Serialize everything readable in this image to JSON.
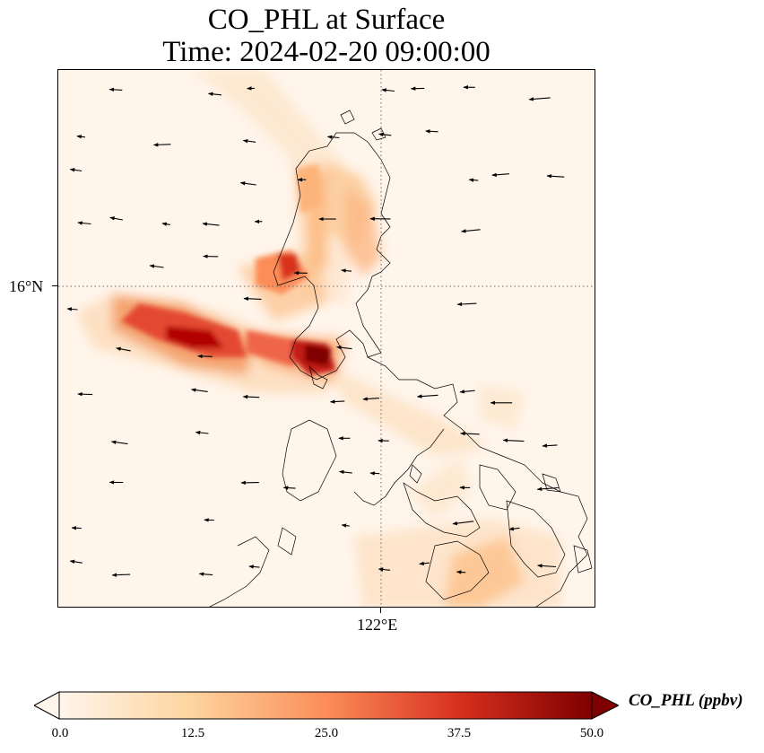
{
  "title": {
    "line1": "CO_PHL at Surface",
    "line2": "Time: 2024-02-20 09:00:00"
  },
  "axes": {
    "lat_tick": "16°N",
    "lon_tick": "122°E"
  },
  "colorbar": {
    "label": "CO_PHL (ppbv)",
    "ticks": [
      "0.0",
      "12.5",
      "25.0",
      "37.5",
      "50.0"
    ],
    "min": 0,
    "max": 50,
    "extend": "both",
    "colormap": "OrRd",
    "colors": [
      "#fff5eb",
      "#fdd49e",
      "#fc8d59",
      "#d7301f",
      "#7f0000"
    ]
  },
  "map": {
    "background_color": "#fff5eb",
    "gridlines": "dotted",
    "features": [
      "coastlines",
      "wind-vectors",
      "co-concentration-field"
    ]
  }
}
